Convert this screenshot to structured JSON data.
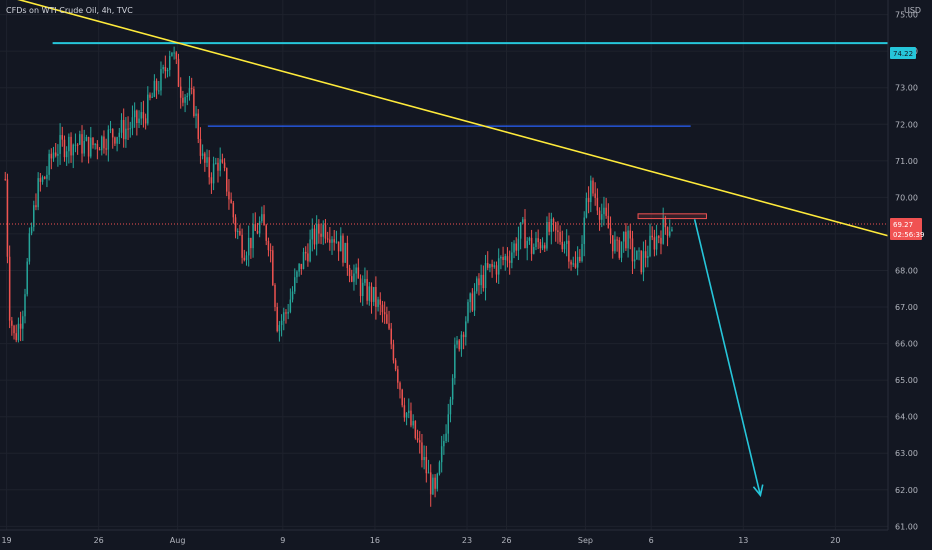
{
  "header": {
    "symbol_title": "CFDs on WTI Crude Oil, 4h, TVC"
  },
  "axis": {
    "currency": "USD",
    "price_ticks": [
      "61.00",
      "62.00",
      "63.00",
      "64.00",
      "65.00",
      "66.00",
      "67.00",
      "68.00",
      "69.00",
      "70.00",
      "71.00",
      "72.00",
      "73.00",
      "74.00",
      "75.00"
    ],
    "date_ticks": [
      {
        "label": "19",
        "day": 19
      },
      {
        "label": "26",
        "day": 26
      },
      {
        "label": "Aug",
        "day": 32
      },
      {
        "label": "9",
        "day": 40
      },
      {
        "label": "16",
        "day": 47
      },
      {
        "label": "23",
        "day": 54
      },
      {
        "label": "26",
        "day": 57
      },
      {
        "label": "Sep",
        "day": 63
      },
      {
        "label": "6",
        "day": 68
      },
      {
        "label": "13",
        "day": 75
      },
      {
        "label": "20",
        "day": 82
      }
    ],
    "ylim": [
      60.9,
      75.4
    ]
  },
  "price_tags": {
    "resistance": {
      "label": "74.22",
      "color": "#26c6da"
    },
    "current_price": "69.27",
    "countdown": "02:56:39",
    "current_color": "#f05252"
  },
  "chart_data": {
    "type": "candlestick",
    "x_unit": "days since 2021-06-30 (x values represent dates)",
    "x_axis_dates": [
      "Jul 19",
      "Jul 26",
      "Aug 1",
      "Aug 9",
      "Aug 16",
      "Aug 23",
      "Aug 26",
      "Sep 1",
      "Sep 6",
      "Sep 13",
      "Sep 20"
    ],
    "ylim": [
      60.9,
      75.4
    ],
    "current_price": 69.27,
    "annotations": [
      {
        "kind": "horizontal-line",
        "value": 74.22,
        "color": "#26c6da",
        "from_day": 22.5,
        "to_day": 86
      },
      {
        "kind": "horizontal-line",
        "value": 71.95,
        "color": "#2962ff",
        "from_day": 34.3,
        "to_day": 71
      },
      {
        "kind": "trendline",
        "from": {
          "day": 18.5,
          "price": 75.55
        },
        "to": {
          "day": 86,
          "price": 68.95
        },
        "color": "#ffeb3b"
      },
      {
        "kind": "rectangle",
        "from_day": 67,
        "to_day": 72.2,
        "price_top": 69.55,
        "price_bottom": 69.42,
        "color": "#f05252"
      },
      {
        "kind": "arrow",
        "from": {
          "day": 71.3,
          "price": 69.4
        },
        "to": {
          "day": 76.3,
          "price": 61.85
        },
        "color": "#26c6da"
      }
    ],
    "anchors": [
      [
        18.9,
        70.5
      ],
      [
        19.2,
        67.0
      ],
      [
        19.6,
        66.1
      ],
      [
        20.2,
        66.9
      ],
      [
        20.8,
        68.9
      ],
      [
        21.3,
        70.2
      ],
      [
        22.0,
        70.6
      ],
      [
        22.6,
        71.3
      ],
      [
        23.8,
        71.5
      ],
      [
        25.4,
        71.4
      ],
      [
        26.8,
        71.7
      ],
      [
        28.2,
        71.9
      ],
      [
        29.4,
        72.2
      ],
      [
        30.4,
        73.0
      ],
      [
        31.0,
        73.4
      ],
      [
        31.5,
        74.2
      ],
      [
        32.2,
        73.0
      ],
      [
        33.2,
        72.6
      ],
      [
        33.9,
        71.0
      ],
      [
        34.5,
        70.6
      ],
      [
        35.1,
        71.0
      ],
      [
        35.7,
        70.4
      ],
      [
        36.4,
        69.2
      ],
      [
        37.0,
        68.6
      ],
      [
        37.7,
        68.9
      ],
      [
        38.3,
        69.3
      ],
      [
        39.0,
        68.8
      ],
      [
        39.6,
        66.5
      ],
      [
        40.2,
        66.8
      ],
      [
        40.8,
        67.5
      ],
      [
        41.5,
        68.3
      ],
      [
        42.2,
        68.8
      ],
      [
        43.0,
        69.2
      ],
      [
        43.6,
        69.1
      ],
      [
        44.4,
        68.7
      ],
      [
        45.2,
        68.0
      ],
      [
        46.0,
        67.5
      ],
      [
        46.8,
        67.3
      ],
      [
        47.6,
        66.8
      ],
      [
        48.4,
        65.8
      ],
      [
        49.2,
        64.3
      ],
      [
        49.8,
        63.7
      ],
      [
        50.5,
        63.0
      ],
      [
        51.1,
        62.3
      ],
      [
        51.6,
        61.8
      ],
      [
        52.3,
        63.5
      ],
      [
        53.0,
        65.6
      ],
      [
        53.8,
        66.6
      ],
      [
        54.6,
        67.4
      ],
      [
        55.4,
        67.9
      ],
      [
        56.1,
        68.1
      ],
      [
        56.8,
        68.3
      ],
      [
        57.5,
        68.6
      ],
      [
        58.2,
        69.1
      ],
      [
        58.9,
        68.6
      ],
      [
        59.6,
        68.8
      ],
      [
        60.3,
        69.1
      ],
      [
        61.0,
        68.9
      ],
      [
        61.6,
        68.8
      ],
      [
        62.2,
        67.9
      ],
      [
        62.8,
        69.0
      ],
      [
        63.3,
        70.3
      ],
      [
        63.8,
        70.0
      ],
      [
        64.3,
        69.5
      ],
      [
        64.8,
        69.1
      ],
      [
        65.4,
        68.5
      ],
      [
        66.0,
        69.0
      ],
      [
        66.6,
        68.4
      ],
      [
        67.2,
        68.2
      ],
      [
        67.8,
        68.6
      ],
      [
        68.4,
        68.9
      ],
      [
        69.0,
        69.2
      ],
      [
        69.6,
        69.27
      ]
    ],
    "color_up": "#26a69a",
    "color_down": "#ef5350"
  }
}
